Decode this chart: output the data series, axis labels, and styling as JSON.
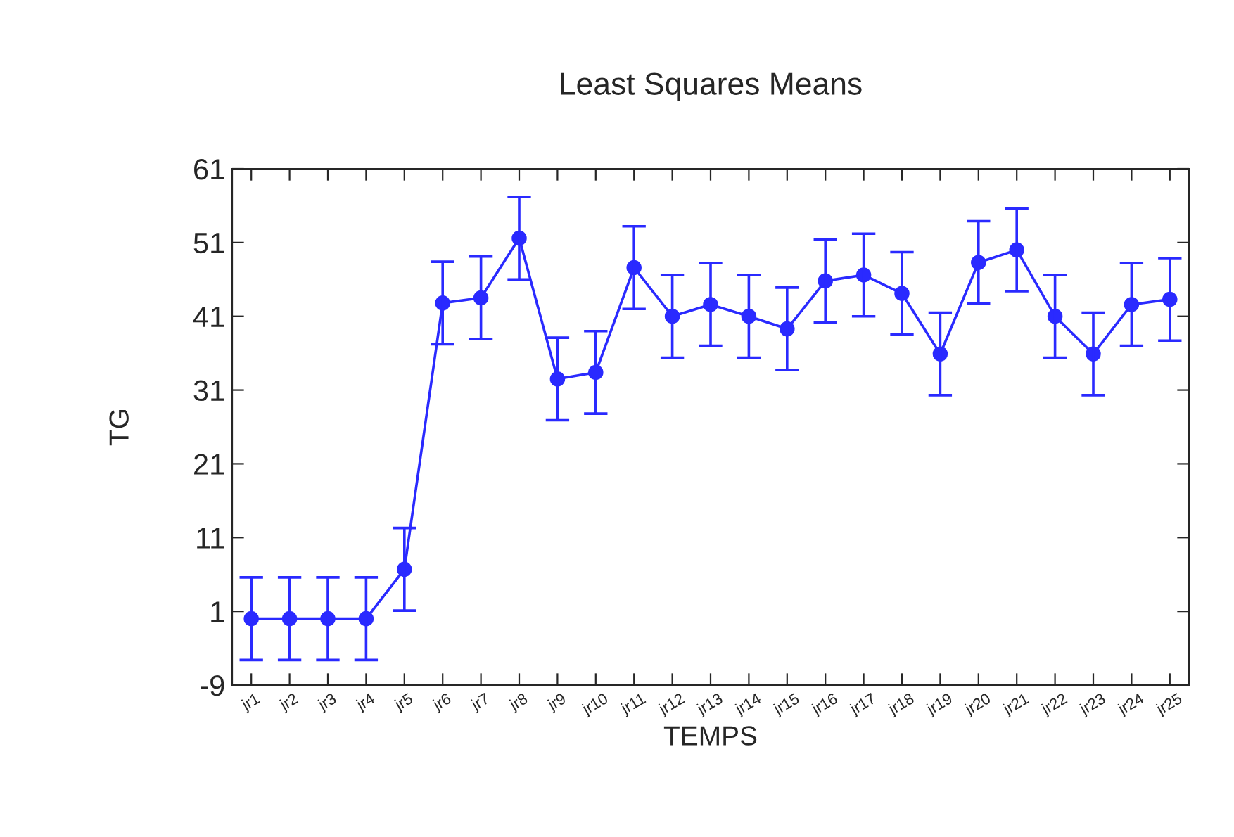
{
  "chart_data": {
    "type": "line",
    "title": "Least Squares Means",
    "xlabel": "TEMPS",
    "ylabel": "TG",
    "categories": [
      "jr1",
      "jr2",
      "jr3",
      "jr4",
      "jr5",
      "jr6",
      "jr7",
      "jr8",
      "jr9",
      "jr10",
      "jr11",
      "jr12",
      "jr13",
      "jr14",
      "jr15",
      "jr16",
      "jr17",
      "jr18",
      "jr19",
      "jr20",
      "jr21",
      "jr22",
      "jr23",
      "jr24",
      "jr25"
    ],
    "series": [
      {
        "color": "#2a2aff",
        "values": [
          0.0,
          0.0,
          0.0,
          0.0,
          6.7,
          42.8,
          43.5,
          51.6,
          32.5,
          33.4,
          47.6,
          41.0,
          42.6,
          41.0,
          39.3,
          45.8,
          46.6,
          44.1,
          35.9,
          48.3,
          50.0,
          41.0,
          35.9,
          42.6,
          43.3
        ],
        "errors": [
          5.6,
          5.6,
          5.6,
          5.6,
          5.6,
          5.6,
          5.6,
          5.6,
          5.6,
          5.6,
          5.6,
          5.6,
          5.6,
          5.6,
          5.6,
          5.6,
          5.6,
          5.6,
          5.6,
          5.6,
          5.6,
          5.6,
          5.6,
          5.6,
          5.6
        ]
      }
    ],
    "ylim": [
      -9,
      61
    ],
    "yticks": [
      -9,
      1,
      11,
      21,
      31,
      41,
      51,
      61
    ],
    "marker": "circle",
    "line_style": "solid"
  }
}
